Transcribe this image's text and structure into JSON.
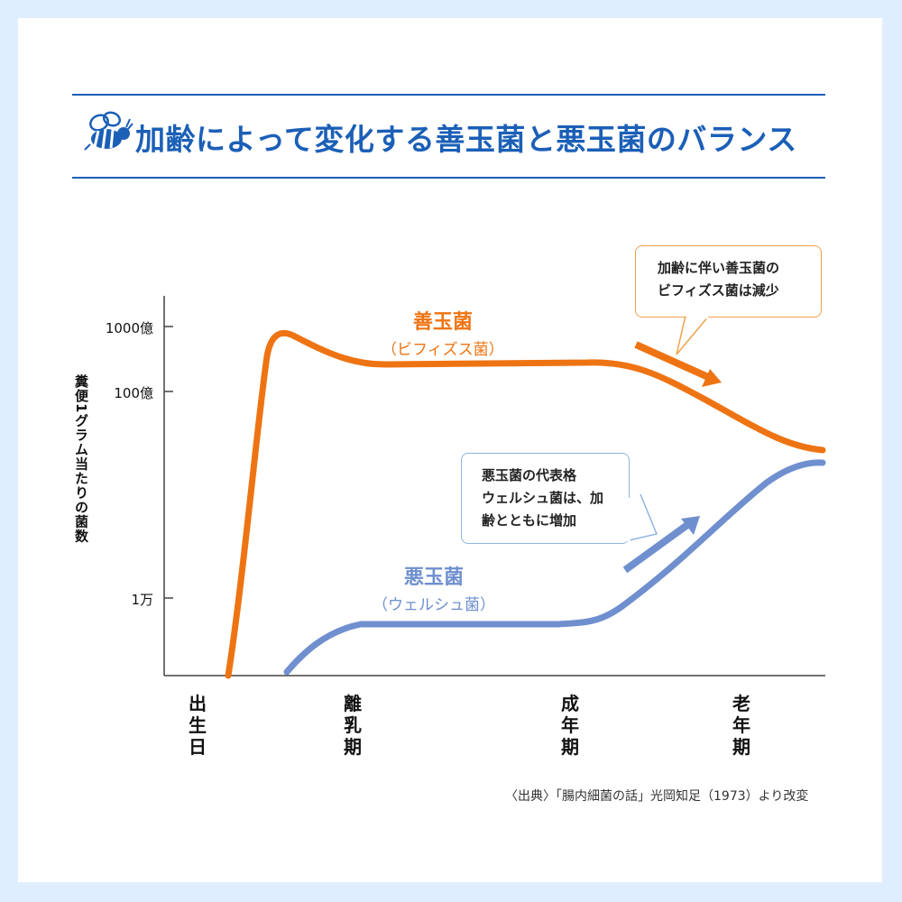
{
  "title": "加齢によって変化する善玉菌と悪玉菌のバランス",
  "colors": {
    "accent": "#1b5fb7",
    "good": "#ee7413",
    "bad": "#6f8fcf",
    "good_border": "#f0a24a",
    "bad_border": "#8fb5e2"
  },
  "icons": [
    "bee-icon"
  ],
  "chart_data": {
    "type": "line",
    "ylabel": "糞便1グラム当たりの菌数",
    "yscale": "log",
    "y_ticks": [
      {
        "label": "1000億",
        "value": 100000000000
      },
      {
        "label": "100億",
        "value": 10000000000
      },
      {
        "label": "1万",
        "value": 10000
      }
    ],
    "x_categories": [
      "出生日",
      "離乳期",
      "成年期",
      "老年期"
    ],
    "series": [
      {
        "name": "善玉菌",
        "sub": "（ビフィズス菌）",
        "color": "#ee7413",
        "points": [
          {
            "x": "出生日",
            "y": 100
          },
          {
            "x": "出生日〜離乳期",
            "y": 80000000000
          },
          {
            "x": "離乳期",
            "y": 25000000000
          },
          {
            "x": "成年期",
            "y": 30000000000
          },
          {
            "x": "老年期",
            "y": 2000000000
          },
          {
            "x": "老年期以降",
            "y": 500000000
          }
        ]
      },
      {
        "name": "悪玉菌",
        "sub": "（ウェルシュ菌）",
        "color": "#6f8fcf",
        "points": [
          {
            "x": "出生日〜離乳期",
            "y": 100
          },
          {
            "x": "離乳期",
            "y": 4000
          },
          {
            "x": "成年期",
            "y": 4000
          },
          {
            "x": "老年期",
            "y": 20000000
          },
          {
            "x": "老年期以降",
            "y": 300000000
          }
        ]
      }
    ],
    "annotations": [
      {
        "lines": [
          "加齢に伴い善玉菌の",
          "ビフィズス菌は減少"
        ]
      },
      {
        "lines": [
          "悪玉菌の代表格",
          "ウェルシュ菌は、加",
          "齢とともに増加"
        ]
      }
    ],
    "source": "〈出典〉「腸内細菌の話」光岡知足（1973）より改変"
  }
}
